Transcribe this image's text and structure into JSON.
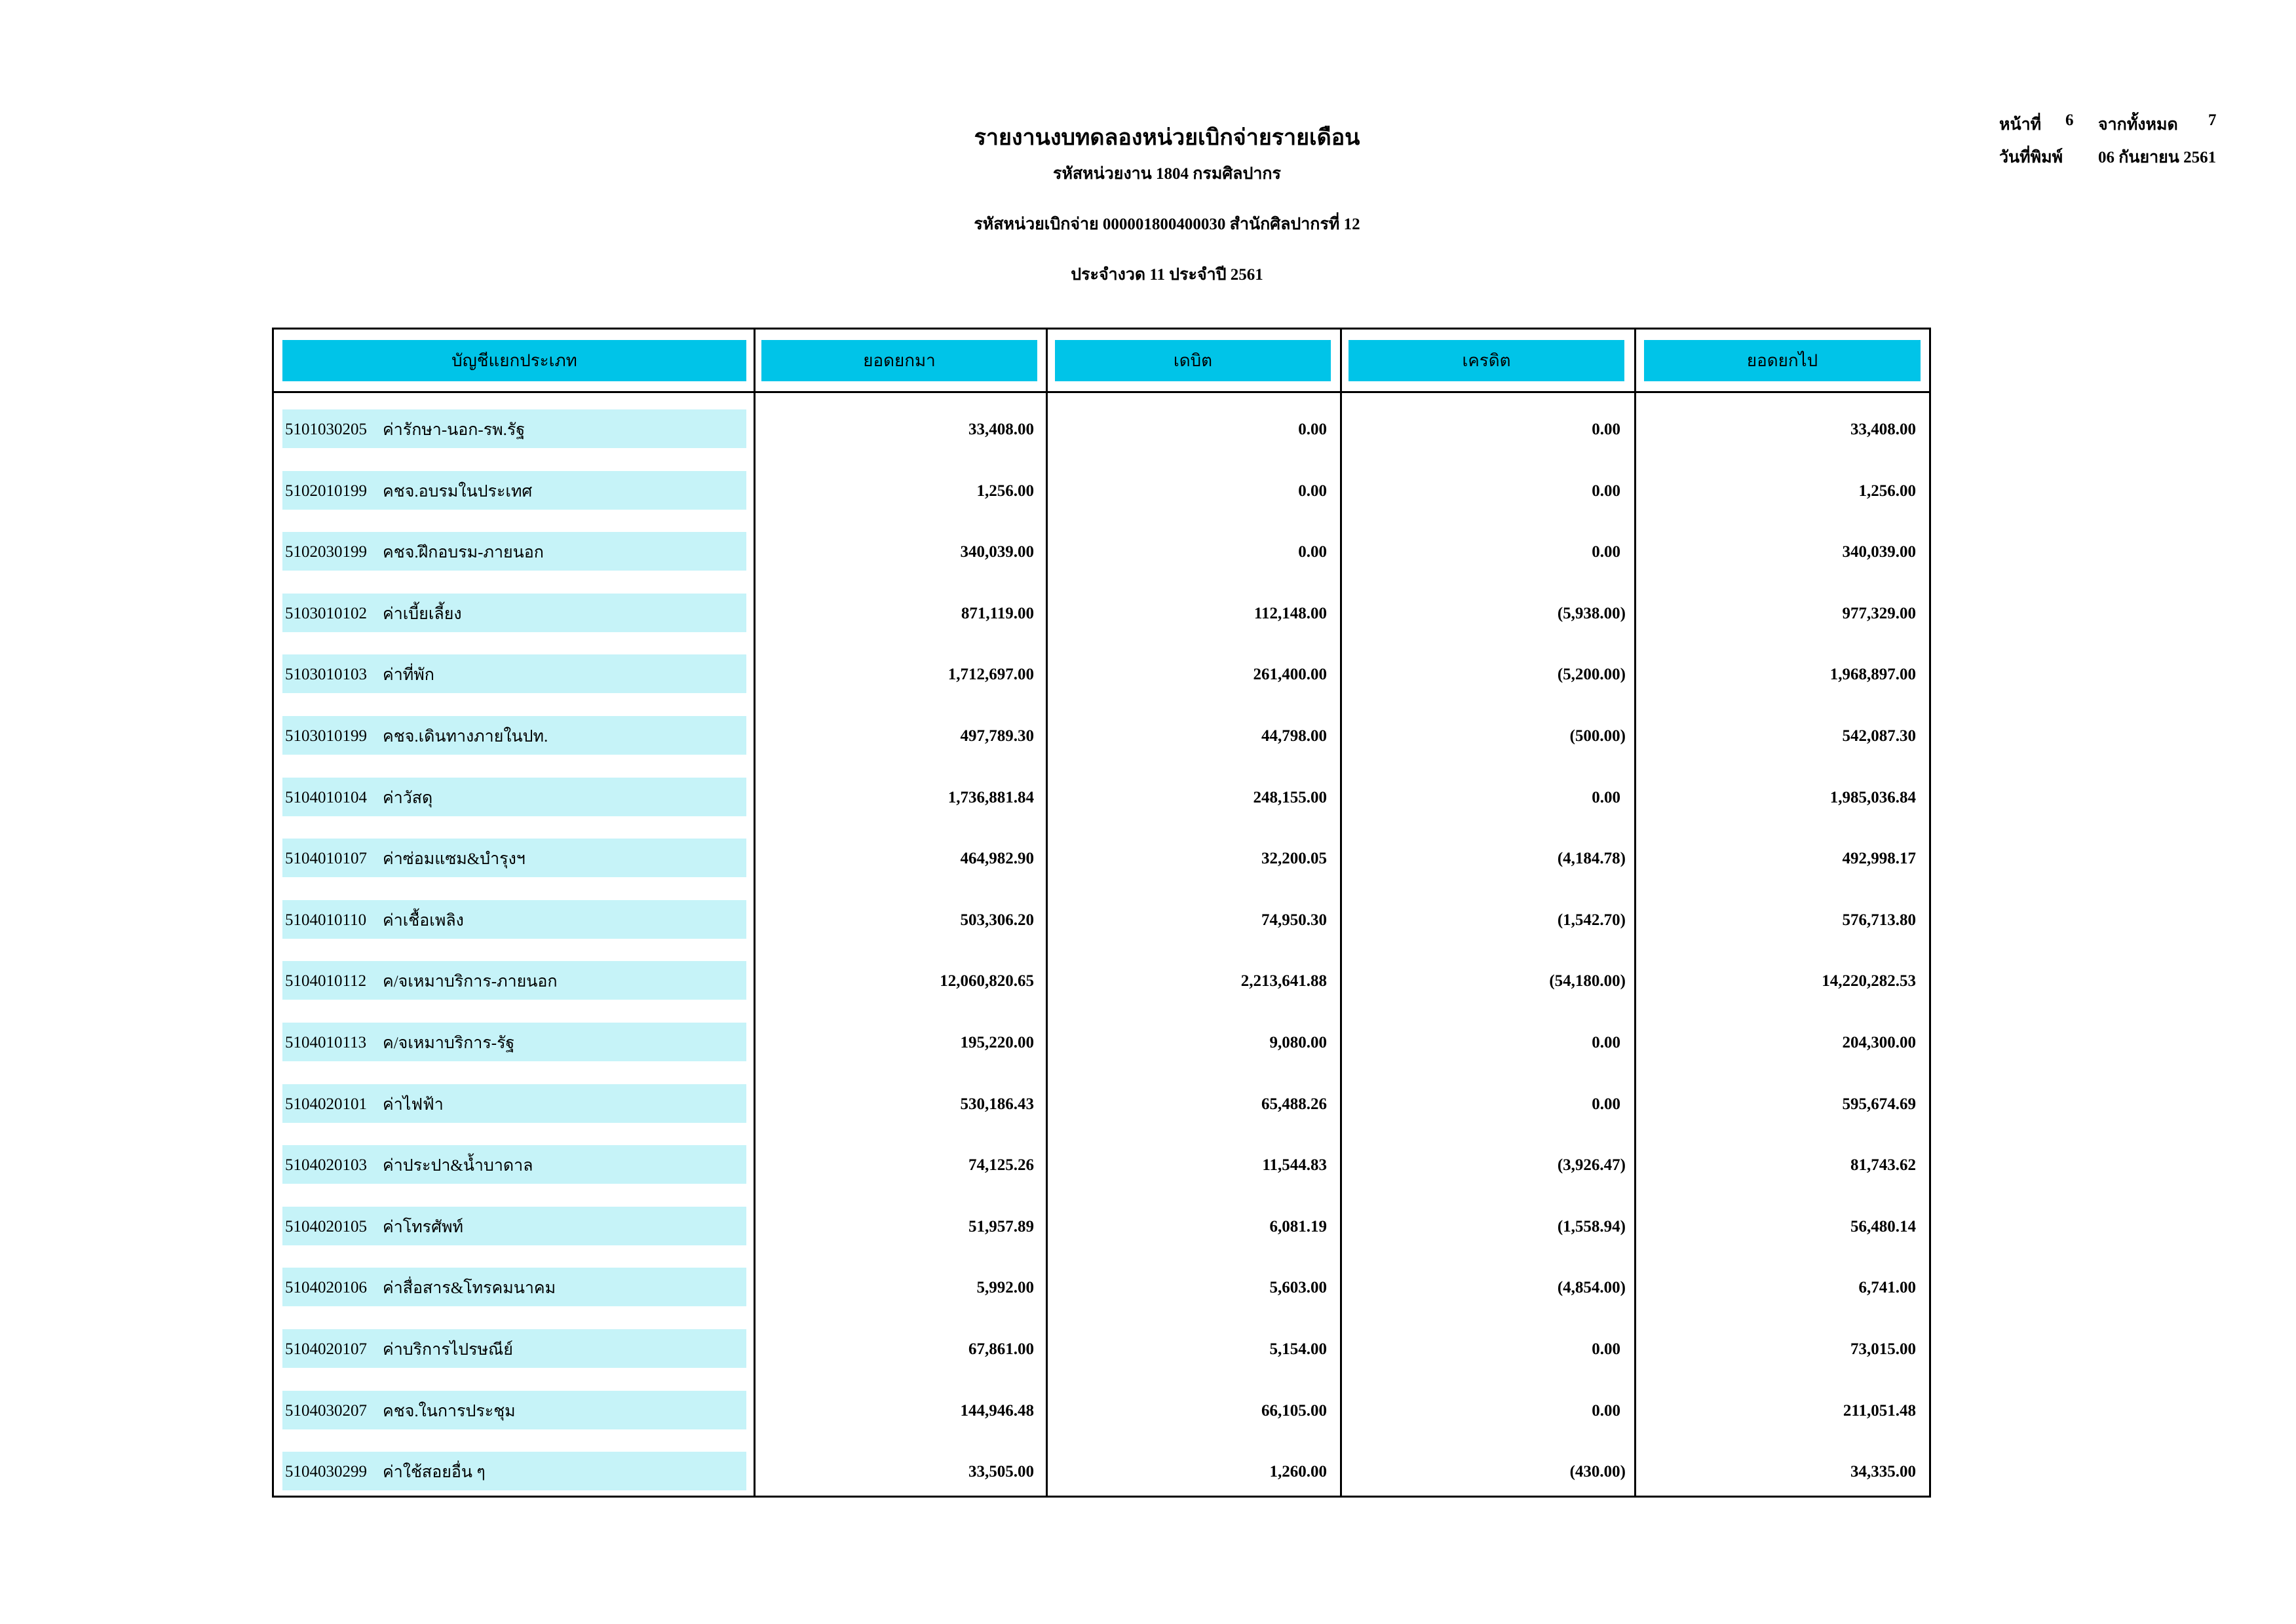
{
  "header": {
    "title": "รายงานงบทดลองหน่วยเบิกจ่ายรายเดือน",
    "agency": "รหัสหน่วยงาน 1804 กรมศิลปากร",
    "unit": "รหัสหน่วยเบิกจ่าย 000001800400030 สำนักศิลปากรที่ 12",
    "period": "ประจำงวด 11 ประจำปี 2561",
    "page_label": "หน้าที่",
    "page": "6",
    "of_label": "จากทั้งหมด",
    "total_pages": "7",
    "print_date_label": "วันที่พิมพ์",
    "print_date": "06 กันยายน 2561"
  },
  "table": {
    "columns": [
      "บัญชีแยกประเภท",
      "ยอดยกมา",
      "เดบิต",
      "เครดิต",
      "ยอดยกไป"
    ],
    "rows": [
      [
        "5101030205",
        "ค่ารักษา-นอก-รพ.รัฐ",
        "33,408.00",
        "0.00",
        "0.00",
        "33,408.00"
      ],
      [
        "5102010199",
        "คชจ.อบรมในประเทศ",
        "1,256.00",
        "0.00",
        "0.00",
        "1,256.00"
      ],
      [
        "5102030199",
        "คชจ.ฝึกอบรม-ภายนอก",
        "340,039.00",
        "0.00",
        "0.00",
        "340,039.00"
      ],
      [
        "5103010102",
        "ค่าเบี้ยเลี้ยง",
        "871,119.00",
        "112,148.00",
        "(5,938.00)",
        "977,329.00"
      ],
      [
        "5103010103",
        "ค่าที่พัก",
        "1,712,697.00",
        "261,400.00",
        "(5,200.00)",
        "1,968,897.00"
      ],
      [
        "5103010199",
        "คชจ.เดินทางภายในปท.",
        "497,789.30",
        "44,798.00",
        "(500.00)",
        "542,087.30"
      ],
      [
        "5104010104",
        "ค่าวัสดุ",
        "1,736,881.84",
        "248,155.00",
        "0.00",
        "1,985,036.84"
      ],
      [
        "5104010107",
        "ค่าซ่อมแซม&บำรุงฯ",
        "464,982.90",
        "32,200.05",
        "(4,184.78)",
        "492,998.17"
      ],
      [
        "5104010110",
        "ค่าเชื้อเพลิง",
        "503,306.20",
        "74,950.30",
        "(1,542.70)",
        "576,713.80"
      ],
      [
        "5104010112",
        "ค/จเหมาบริการ-ภายนอก",
        "12,060,820.65",
        "2,213,641.88",
        "(54,180.00)",
        "14,220,282.53"
      ],
      [
        "5104010113",
        "ค/จเหมาบริการ-รัฐ",
        "195,220.00",
        "9,080.00",
        "0.00",
        "204,300.00"
      ],
      [
        "5104020101",
        "ค่าไฟฟ้า",
        "530,186.43",
        "65,488.26",
        "0.00",
        "595,674.69"
      ],
      [
        "5104020103",
        "ค่าประปา&น้ำบาดาล",
        "74,125.26",
        "11,544.83",
        "(3,926.47)",
        "81,743.62"
      ],
      [
        "5104020105",
        "ค่าโทรศัพท์",
        "51,957.89",
        "6,081.19",
        "(1,558.94)",
        "56,480.14"
      ],
      [
        "5104020106",
        "ค่าสื่อสาร&โทรคมนาคม",
        "5,992.00",
        "5,603.00",
        "(4,854.00)",
        "6,741.00"
      ],
      [
        "5104020107",
        "ค่าบริการไปรษณีย์",
        "67,861.00",
        "5,154.00",
        "0.00",
        "73,015.00"
      ],
      [
        "5104030207",
        "คชจ.ในการประชุม",
        "144,946.48",
        "66,105.00",
        "0.00",
        "211,051.48"
      ],
      [
        "5104030299",
        "ค่าใช้สอยอื่น ๆ",
        "33,505.00",
        "1,260.00",
        "(430.00)",
        "34,335.00"
      ]
    ]
  }
}
